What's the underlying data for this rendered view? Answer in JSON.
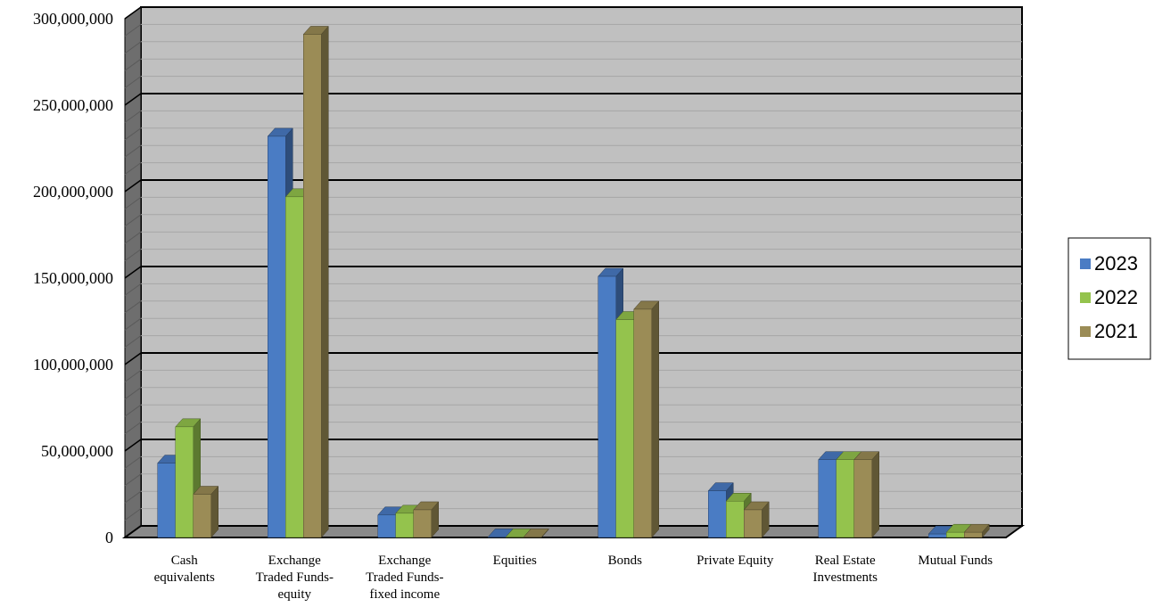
{
  "chart_data": {
    "type": "bar",
    "title": "",
    "xlabel": "",
    "ylabel": "",
    "ylim": [
      0,
      300000000
    ],
    "yticks": [
      0,
      50000000,
      100000000,
      150000000,
      200000000,
      250000000,
      300000000
    ],
    "ytick_labels": [
      "0",
      "50,000,000",
      "100,000,000",
      "150,000,000",
      "200,000,000",
      "250,000,000",
      "300,000,000"
    ],
    "categories": [
      "Cash equivalents",
      "Exchange Traded Funds-equity",
      "Exchange Traded Funds-fixed income",
      "Equities",
      "Bonds",
      "Private Equity",
      "Real Estate Investments",
      "Mutual Funds"
    ],
    "category_lines": [
      [
        "Cash",
        "equivalents"
      ],
      [
        "Exchange",
        "Traded Funds-",
        "equity"
      ],
      [
        "Exchange",
        "Traded Funds-",
        "fixed income"
      ],
      [
        "Equities"
      ],
      [
        "Bonds"
      ],
      [
        "Private Equity"
      ],
      [
        "Real Estate",
        "Investments"
      ],
      [
        "Mutual Funds"
      ]
    ],
    "series": [
      {
        "name": "2023",
        "color": "#4a7cc4",
        "values": [
          43000000,
          232000000,
          13000000,
          300000,
          151000000,
          27000000,
          45000000,
          2000000
        ]
      },
      {
        "name": "2022",
        "color": "#94c34d",
        "values": [
          64000000,
          197000000,
          14000000,
          300000,
          126000000,
          21000000,
          45000000,
          3000000
        ]
      },
      {
        "name": "2021",
        "color": "#9b8c56",
        "values": [
          25000000,
          291000000,
          16000000,
          300000,
          132000000,
          16000000,
          45000000,
          3000000
        ]
      }
    ],
    "grid": true,
    "legend_position": "right",
    "style": "3d-column",
    "plot_background": "#c0c0c0"
  }
}
